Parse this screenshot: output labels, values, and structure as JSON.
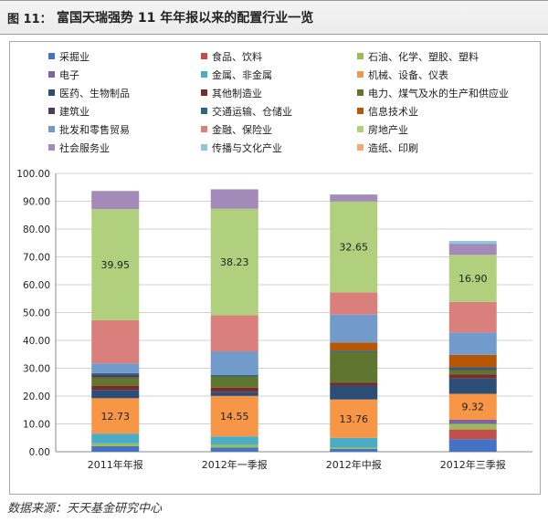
{
  "figure": {
    "number": "图 11：",
    "title": "富国天瑞强势 11 年年报以来的配置行业一览"
  },
  "source": "数据来源：天天基金研究中心",
  "colors": [
    "#4472c4",
    "#c0504d",
    "#9bbb59",
    "#8064a2",
    "#4bacc6",
    "#f79646",
    "#2c4d75",
    "#772c2a",
    "#5f7530",
    "#4d3b62",
    "#276a7c",
    "#b65708",
    "#729aca",
    "#d9807c",
    "#b1d07e",
    "#a38ab9",
    "#8ec7d9",
    "#f9a970"
  ],
  "chart_data": {
    "type": "bar",
    "stacked": true,
    "categories": [
      "2011年年报",
      "2012年一季报",
      "2012年中报",
      "2012年三季报"
    ],
    "ylim": [
      0,
      100
    ],
    "yticks": [
      "0.00",
      "10.00",
      "20.00",
      "30.00",
      "40.00",
      "50.00",
      "60.00",
      "70.00",
      "80.00",
      "90.00",
      "100.00"
    ],
    "legend_position": "top",
    "series": [
      {
        "name": "采掘业",
        "values": [
          2.0,
          1.5,
          1.0,
          4.5
        ]
      },
      {
        "name": "食品、饮料",
        "values": [
          0.0,
          0.0,
          0.0,
          3.5
        ]
      },
      {
        "name": "石油、化学、塑胶、塑料",
        "values": [
          1.0,
          1.0,
          0.5,
          2.0
        ]
      },
      {
        "name": "电子",
        "values": [
          0.0,
          0.0,
          0.0,
          1.5
        ]
      },
      {
        "name": "金属、非金属",
        "values": [
          3.5,
          3.0,
          3.5,
          0.0
        ]
      },
      {
        "name": "机械、设备、仪表",
        "values": [
          12.73,
          14.55,
          13.76,
          9.32
        ]
      },
      {
        "name": "医药、生物制品",
        "values": [
          3.0,
          1.5,
          5.0,
          5.5
        ]
      },
      {
        "name": "其他制造业",
        "values": [
          1.5,
          1.5,
          1.0,
          1.5
        ]
      },
      {
        "name": "电力、煤气及水的生产和供应业",
        "values": [
          3.0,
          4.0,
          11.0,
          1.5
        ]
      },
      {
        "name": "建筑业",
        "values": [
          1.0,
          0.0,
          0.0,
          0.5
        ]
      },
      {
        "name": "交通运输、仓储业",
        "values": [
          0.5,
          0.5,
          0.5,
          0.5
        ]
      },
      {
        "name": "信息技术业",
        "values": [
          0.0,
          0.0,
          3.0,
          4.5
        ]
      },
      {
        "name": "批发和零售贸易",
        "values": [
          3.5,
          8.5,
          10.0,
          8.0
        ]
      },
      {
        "name": "金融、保险业",
        "values": [
          15.5,
          13.0,
          8.0,
          11.0
        ]
      },
      {
        "name": "房地产业",
        "values": [
          39.95,
          38.23,
          32.65,
          16.9
        ]
      },
      {
        "name": "社会服务业",
        "values": [
          6.5,
          7.0,
          2.5,
          4.0
        ]
      },
      {
        "name": "传播与文化产业",
        "values": [
          0.0,
          0.0,
          0.0,
          1.0
        ]
      },
      {
        "name": "造纸、印刷",
        "values": [
          0.0,
          0.0,
          0.0,
          0.0
        ]
      }
    ],
    "data_labels": [
      {
        "series": "机械、设备、仪表",
        "labels": [
          "12.73",
          "14.55",
          "13.76",
          "9.32"
        ]
      },
      {
        "series": "房地产业",
        "labels": [
          "39.95",
          "38.23",
          "32.65",
          "16.90"
        ]
      }
    ]
  }
}
